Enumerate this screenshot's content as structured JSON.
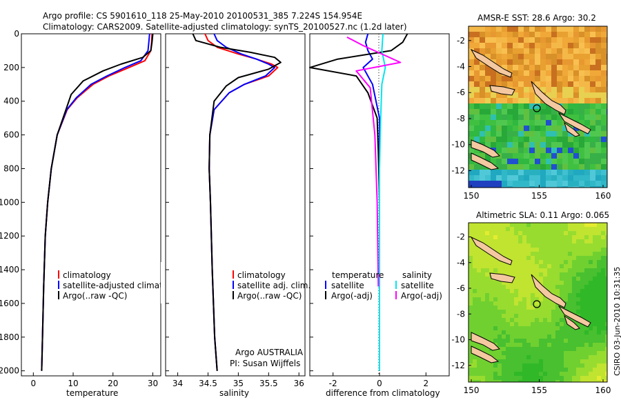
{
  "header": {
    "line1": "Argo profile: CS 5901610_118 25-May-2010 20100531_385 7.224S 154.954E",
    "line2": "Climatology: CARS2009. Satellite-adjusted climatology: synTS_20100527.nc (1.2d later)"
  },
  "annotations": {
    "org": "Argo AUSTRALIA",
    "pi": "PI: Susan Wijffels",
    "credit": "CSIRO 03-Jun-2010 10:31:35"
  },
  "colors": {
    "climatology": "#ff0000",
    "satellite": "#0000ff",
    "argo": "#000000",
    "sat_diff_salinity": "#00e5ee",
    "argo_diff_salinity": "#ff00ff"
  },
  "chart_data": [
    {
      "id": "temperature",
      "type": "line",
      "xlabel": "temperature",
      "ylim": [
        2030,
        0
      ],
      "xlim": [
        -3,
        32
      ],
      "xticks": [
        0,
        10,
        20,
        30
      ],
      "yticks": [
        0,
        200,
        400,
        600,
        800,
        1000,
        1200,
        1400,
        1600,
        1800,
        2000
      ],
      "legend": [
        "climatology",
        "satellite-adjusted climatology",
        "Argo(..raw -QC)"
      ],
      "series": [
        {
          "name": "climatology",
          "color": "#ff0000",
          "x": [
            29.8,
            29.7,
            29.5,
            28.0,
            24.0,
            19.0,
            15.0,
            11.0,
            8.5,
            6.0,
            4.5,
            3.6,
            3.0,
            2.6,
            2.3,
            2.1
          ],
          "y": [
            0,
            50,
            100,
            160,
            200,
            250,
            300,
            380,
            450,
            600,
            800,
            1000,
            1200,
            1500,
            1800,
            2000
          ]
        },
        {
          "name": "satellite-adjusted climatology",
          "color": "#0000ff",
          "x": [
            29.2,
            29.0,
            28.8,
            27.0,
            23.0,
            18.5,
            14.5,
            10.8,
            8.4,
            6.0,
            4.5,
            3.6,
            3.0,
            2.6,
            2.3,
            2.1
          ],
          "y": [
            0,
            50,
            100,
            160,
            200,
            250,
            300,
            380,
            450,
            600,
            800,
            1000,
            1200,
            1500,
            1800,
            2000
          ]
        },
        {
          "name": "Argo(..raw -QC)",
          "color": "#000000",
          "x": [
            30.0,
            29.8,
            29.5,
            27.5,
            22.0,
            17.5,
            12.5,
            9.5,
            8.2,
            6.0,
            4.5,
            3.6,
            3.0,
            2.6,
            2.3,
            2.1
          ],
          "y": [
            0,
            50,
            100,
            140,
            180,
            220,
            280,
            360,
            450,
            600,
            800,
            1000,
            1200,
            1500,
            1800,
            2000
          ]
        }
      ]
    },
    {
      "id": "salinity",
      "type": "line",
      "xlabel": "salinity",
      "ylim": [
        2030,
        0
      ],
      "xlim": [
        33.8,
        36.1
      ],
      "xticks": [
        34,
        34.5,
        35,
        35.5,
        36
      ],
      "legend": [
        "climatology",
        "satellite adj. clim.",
        "Argo(..raw -QC)"
      ],
      "series": [
        {
          "name": "climatology",
          "color": "#ff0000",
          "x": [
            34.45,
            34.5,
            34.65,
            35.0,
            35.3,
            35.55,
            35.65,
            35.5,
            35.1,
            34.85,
            34.6,
            34.53,
            34.52,
            34.54,
            34.57,
            34.61,
            34.65
          ],
          "y": [
            0,
            40,
            80,
            120,
            150,
            180,
            200,
            250,
            300,
            350,
            450,
            600,
            800,
            1000,
            1400,
            1800,
            2000
          ]
        },
        {
          "name": "satellite adj. clim.",
          "color": "#0000ff",
          "x": [
            34.6,
            34.65,
            34.8,
            35.05,
            35.3,
            35.5,
            35.6,
            35.45,
            35.1,
            34.85,
            34.6,
            34.53,
            34.52,
            34.54,
            34.57,
            34.61,
            34.65
          ],
          "y": [
            0,
            40,
            80,
            120,
            150,
            180,
            200,
            250,
            300,
            350,
            450,
            600,
            800,
            1000,
            1400,
            1800,
            2000
          ]
        },
        {
          "name": "Argo(..raw -QC)",
          "color": "#000000",
          "x": [
            34.25,
            34.3,
            34.7,
            35.2,
            35.6,
            35.7,
            35.5,
            35.0,
            34.8,
            34.6,
            34.53,
            34.52,
            34.54,
            34.57,
            34.61,
            34.65
          ],
          "y": [
            0,
            40,
            80,
            110,
            140,
            170,
            210,
            260,
            310,
            400,
            600,
            800,
            1000,
            1400,
            1800,
            2000
          ]
        }
      ]
    },
    {
      "id": "difference",
      "type": "line",
      "xlabel": "difference from climatology",
      "ylim": [
        2030,
        0
      ],
      "xlim": [
        -3,
        3
      ],
      "xticks": [
        -2,
        0,
        2
      ],
      "legend_left_title": "temperature",
      "legend_right_title": "salinity",
      "legend": [
        "satellite",
        "Argo(-adj)",
        "satellite",
        "Argo(-adj)"
      ],
      "series": [
        {
          "name": "satellite",
          "group": "temperature",
          "color": "#0000ff",
          "x": [
            -0.5,
            -0.6,
            -0.5,
            -0.3,
            -0.7,
            -0.3,
            0.0,
            0.0,
            0.0,
            0.0,
            0.0,
            0.0
          ],
          "y": [
            0,
            50,
            100,
            150,
            200,
            300,
            500,
            700,
            1000,
            1400,
            1800,
            2000
          ]
        },
        {
          "name": "Argo(-adj)",
          "group": "temperature",
          "color": "#000000",
          "x": [
            1.2,
            1.0,
            0.5,
            -1.8,
            -3.0,
            -1.0,
            -0.5,
            -0.1,
            -0.05,
            0.0,
            0.0,
            0.0
          ],
          "y": [
            0,
            50,
            100,
            150,
            200,
            250,
            350,
            500,
            700,
            1000,
            1500,
            2000
          ]
        },
        {
          "name": "satellite",
          "group": "salinity",
          "color": "#00e5ee",
          "x": [
            0.15,
            0.1,
            0.25,
            0.1,
            0.05,
            0.0,
            0.0,
            0.0
          ],
          "y": [
            0,
            100,
            200,
            300,
            500,
            800,
            1400,
            2000
          ]
        },
        {
          "name": "Argo(-adj)",
          "group": "salinity",
          "color": "#ff00ff",
          "x": [
            -1.4,
            -0.7,
            0.9,
            -1.0,
            -0.4,
            -0.2,
            -0.1,
            -0.05
          ],
          "y": [
            20,
            70,
            170,
            220,
            320,
            600,
            1000,
            1500
          ]
        }
      ]
    }
  ],
  "maps": [
    {
      "id": "sst",
      "title": "AMSR-E SST: 28.6  Argo: 30.2",
      "xticks": [
        "150",
        "155",
        "160"
      ],
      "yticks": [
        "-2",
        "-4",
        "-6",
        "-8",
        "-10",
        "-12"
      ]
    },
    {
      "id": "sla",
      "title": "Altimetric SLA: 0.11  Argo: 0.065",
      "xticks": [
        "150",
        "155",
        "160"
      ],
      "yticks": [
        "-2",
        "-4",
        "-6",
        "-8",
        "-10",
        "-12"
      ]
    }
  ]
}
